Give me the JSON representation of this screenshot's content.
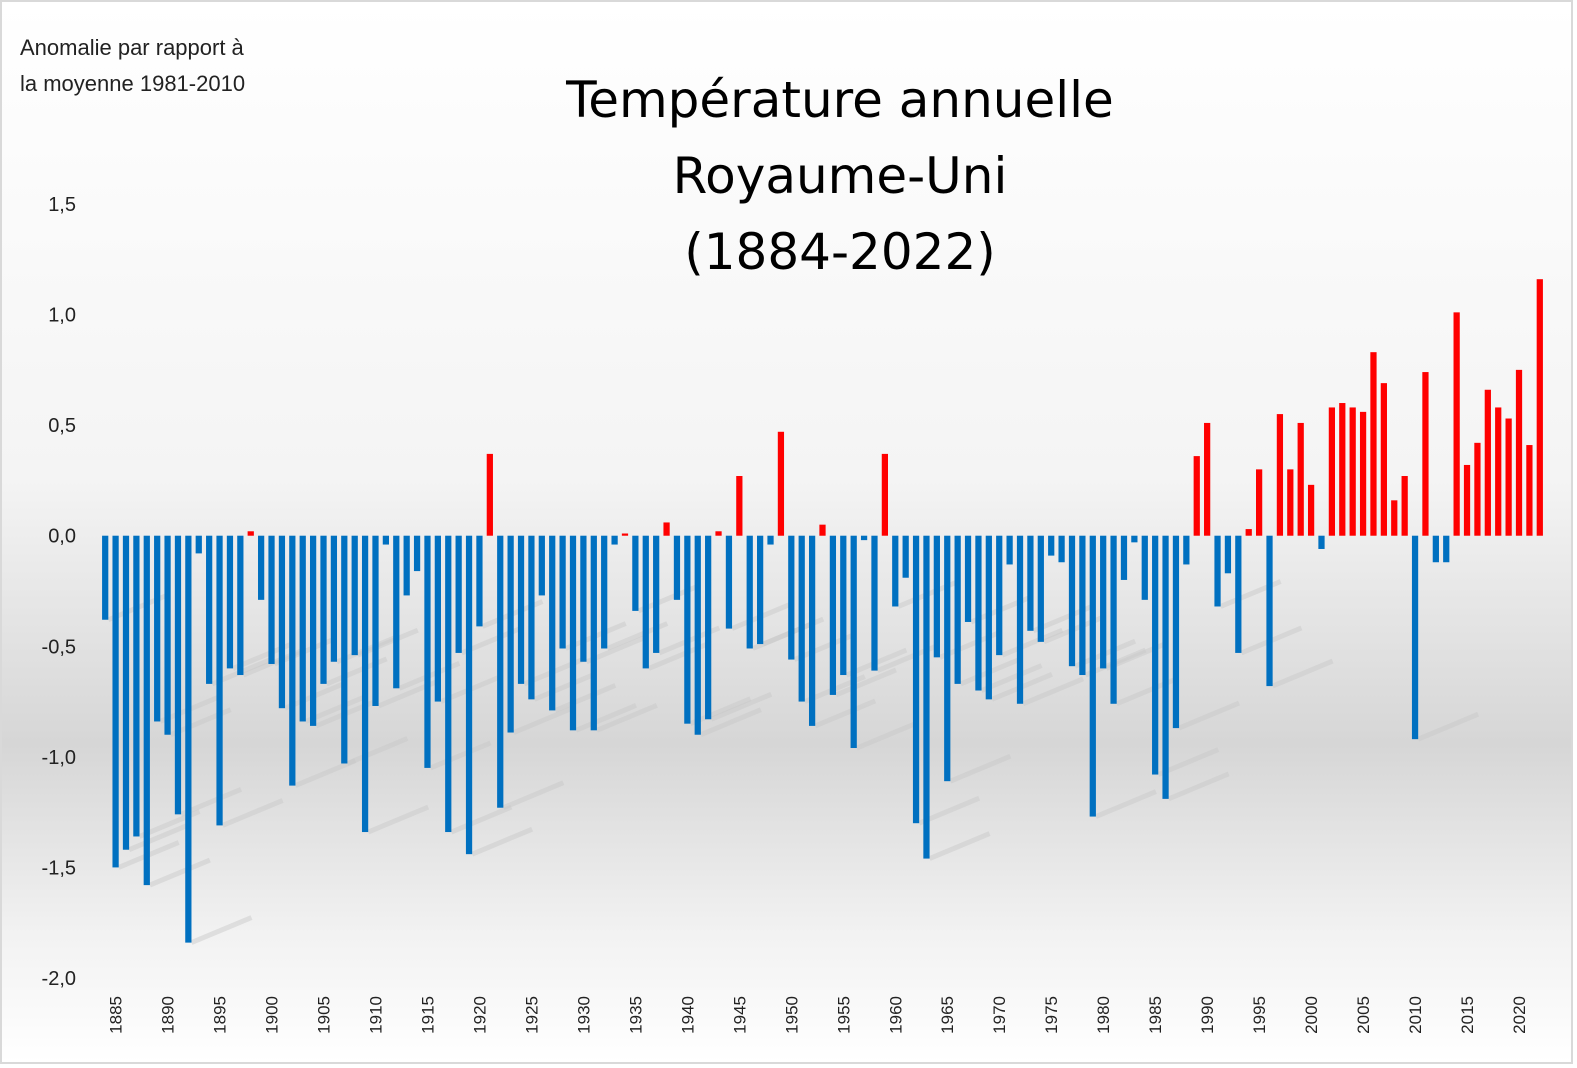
{
  "chart_data": {
    "type": "bar",
    "title": "Température annuelle\nRoyaume-Uni\n(1884-2022)",
    "ylabel": "Anomalie par rapport à\nla moyenne 1981-2010",
    "xlabel": "",
    "ylim": [
      -2.0,
      1.5
    ],
    "yticks": [
      1.5,
      1.0,
      0.5,
      0.0,
      -0.5,
      -1.0,
      -1.5,
      -2.0
    ],
    "ytick_labels": [
      "1,5",
      "1,0",
      "0,5",
      "0,0",
      "-0,5",
      "-1,0",
      "-1,5",
      "-2,0"
    ],
    "xticks": [
      1885,
      1890,
      1895,
      1900,
      1905,
      1910,
      1915,
      1920,
      1925,
      1930,
      1935,
      1940,
      1945,
      1950,
      1955,
      1960,
      1965,
      1970,
      1975,
      1980,
      1985,
      1990,
      1995,
      2000,
      2005,
      2010,
      2015,
      2020
    ],
    "x_start": 1884,
    "x_end": 2022,
    "positive_color": "#ff0000",
    "negative_color": "#0070c0",
    "years": [
      1884,
      1885,
      1886,
      1887,
      1888,
      1889,
      1890,
      1891,
      1892,
      1893,
      1894,
      1895,
      1896,
      1897,
      1898,
      1899,
      1900,
      1901,
      1902,
      1903,
      1904,
      1905,
      1906,
      1907,
      1908,
      1909,
      1910,
      1911,
      1912,
      1913,
      1914,
      1915,
      1916,
      1917,
      1918,
      1919,
      1920,
      1921,
      1922,
      1923,
      1924,
      1925,
      1926,
      1927,
      1928,
      1929,
      1930,
      1931,
      1932,
      1933,
      1934,
      1935,
      1936,
      1937,
      1938,
      1939,
      1940,
      1941,
      1942,
      1943,
      1944,
      1945,
      1946,
      1947,
      1948,
      1949,
      1950,
      1951,
      1952,
      1953,
      1954,
      1955,
      1956,
      1957,
      1958,
      1959,
      1960,
      1961,
      1962,
      1963,
      1964,
      1965,
      1966,
      1967,
      1968,
      1969,
      1970,
      1971,
      1972,
      1973,
      1974,
      1975,
      1976,
      1977,
      1978,
      1979,
      1980,
      1981,
      1982,
      1983,
      1984,
      1985,
      1986,
      1987,
      1988,
      1989,
      1990,
      1991,
      1992,
      1993,
      1994,
      1995,
      1996,
      1997,
      1998,
      1999,
      2000,
      2001,
      2002,
      2003,
      2004,
      2005,
      2006,
      2007,
      2008,
      2009,
      2010,
      2011,
      2012,
      2013,
      2014,
      2015,
      2016,
      2017,
      2018,
      2019,
      2020,
      2021,
      2022
    ],
    "values": [
      -0.38,
      -1.5,
      -1.42,
      -1.36,
      -1.58,
      -0.84,
      -0.9,
      -1.26,
      -1.84,
      -0.08,
      -0.67,
      -1.31,
      -0.6,
      -0.63,
      0.02,
      -0.29,
      -0.58,
      -0.78,
      -1.13,
      -0.84,
      -0.86,
      -0.67,
      -0.57,
      -1.03,
      -0.54,
      -1.34,
      -0.77,
      -0.04,
      -0.69,
      -0.27,
      -0.16,
      -1.05,
      -0.75,
      -1.34,
      -0.53,
      -1.44,
      -0.41,
      0.37,
      -1.23,
      -0.89,
      -0.67,
      -0.74,
      -0.27,
      -0.79,
      -0.51,
      -0.88,
      -0.57,
      -0.88,
      -0.51,
      -0.04,
      0.01,
      -0.34,
      -0.6,
      -0.53,
      0.06,
      -0.29,
      -0.85,
      -0.9,
      -0.83,
      0.02,
      -0.42,
      0.27,
      -0.51,
      -0.49,
      -0.04,
      0.47,
      -0.56,
      -0.75,
      -0.86,
      0.05,
      -0.72,
      -0.63,
      -0.96,
      -0.02,
      -0.61,
      0.37,
      -0.32,
      -0.19,
      -1.3,
      -1.46,
      -0.55,
      -1.11,
      -0.67,
      -0.39,
      -0.7,
      -0.74,
      -0.54,
      -0.13,
      -0.76,
      -0.43,
      -0.48,
      -0.09,
      -0.12,
      -0.59,
      -0.63,
      -1.27,
      -0.6,
      -0.76,
      -0.2,
      -0.03,
      -0.29,
      -1.08,
      -1.19,
      -0.87,
      -0.13,
      0.36,
      0.51,
      -0.32,
      -0.17,
      -0.53,
      0.03,
      0.3,
      -0.68,
      0.55,
      0.3,
      0.51,
      0.23,
      -0.06,
      0.58,
      0.6,
      0.58,
      0.56,
      0.83,
      0.69,
      0.16,
      0.27,
      -0.92,
      0.74,
      -0.12,
      -0.12,
      1.01,
      0.32,
      0.42,
      0.66,
      0.58,
      0.53,
      0.75,
      0.41,
      1.16
    ]
  }
}
